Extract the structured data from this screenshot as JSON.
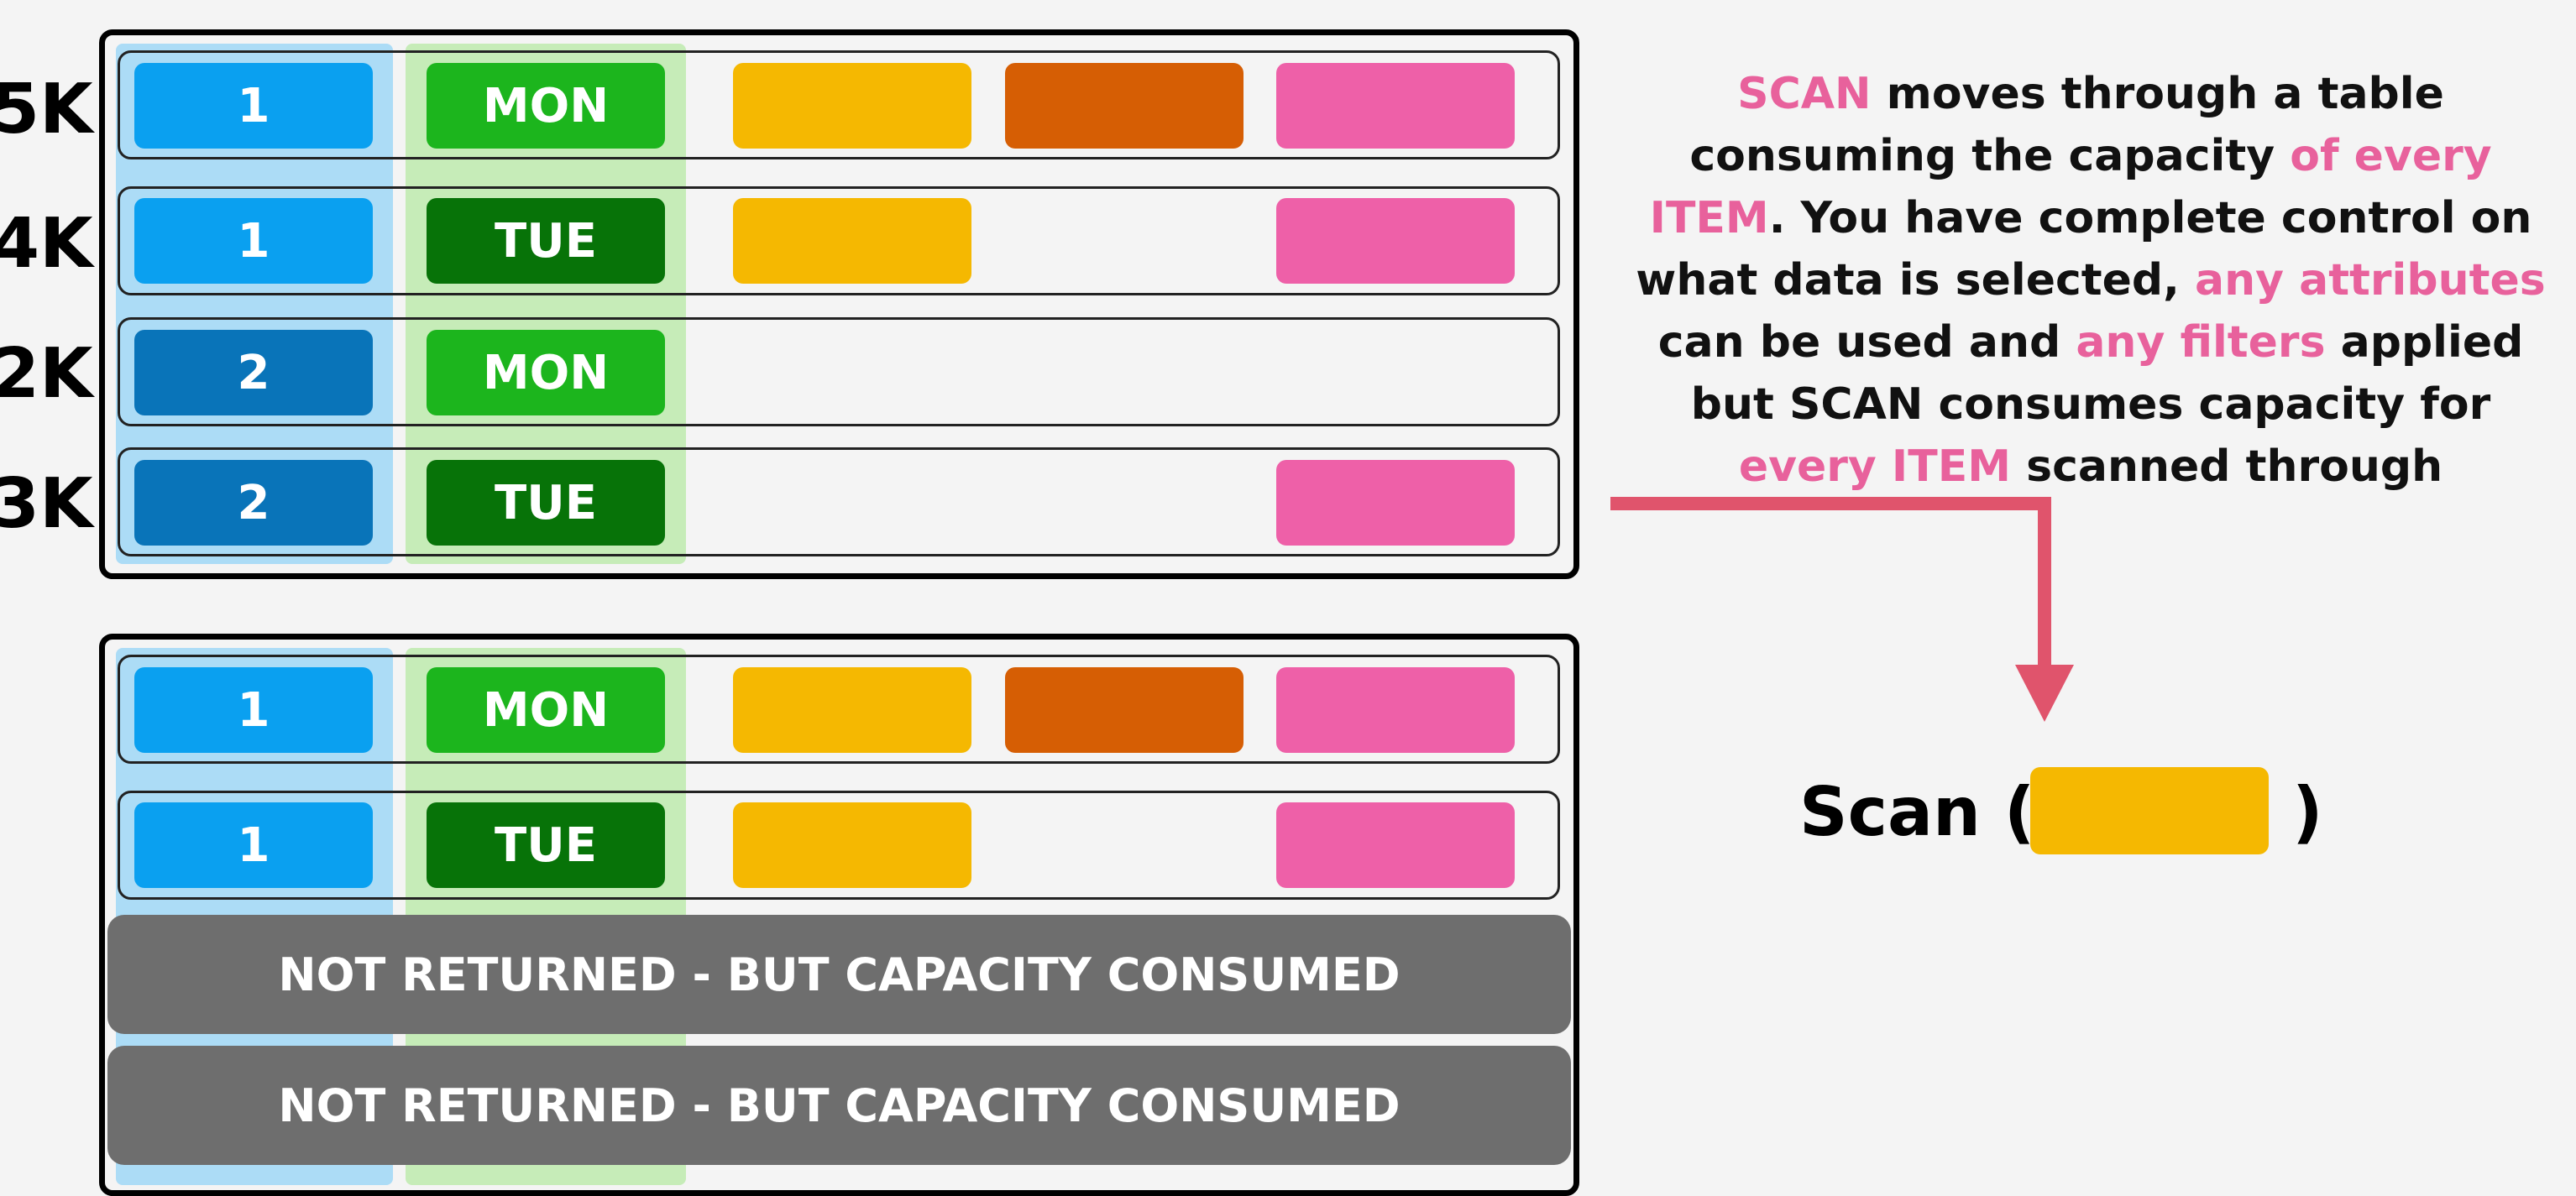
{
  "colors": {
    "background": "#f4f4f4",
    "pk_band": "#acdcf6",
    "sk_band": "#c6ecb8",
    "pk_light": "#0aa0f0",
    "pk_dark": "#0974b9",
    "sk_light": "#1cb51d",
    "sk_dark": "#077308",
    "attr_yellow": "#f5b801",
    "attr_orange": "#d65e04",
    "attr_pink": "#ee60a8",
    "not_returned_bg": "#6e6e6e",
    "arrow": "#e0546c",
    "highlight_text": "#e8619c"
  },
  "top_table": {
    "rows": [
      {
        "size": "5K",
        "pk": "1",
        "sk": "MON"
      },
      {
        "size": "4K",
        "pk": "1",
        "sk": "TUE"
      },
      {
        "size": "2K",
        "pk": "2",
        "sk": "MON"
      },
      {
        "size": "3K",
        "pk": "2",
        "sk": "TUE"
      }
    ]
  },
  "bottom_table": {
    "rows": [
      {
        "pk": "1",
        "sk": "MON"
      },
      {
        "pk": "1",
        "sk": "TUE"
      }
    ],
    "not_returned": [
      "NOT RETURNED - BUT CAPACITY CONSUMED",
      "NOT RETURNED - BUT CAPACITY CONSUMED"
    ]
  },
  "description": {
    "s1": "SCAN",
    "s2": " moves through a table consuming the capacity ",
    "s3": "of every ITEM",
    "s4": ". You have complete control on what data is selected, ",
    "s5": "any attributes",
    "s6": " can be used and ",
    "s7": "any filters",
    "s8": " applied but SCAN consumes capacity for ",
    "s9": "every ITEM",
    "s10": " scanned through"
  },
  "scan": {
    "open": "Scan (",
    "close": ")"
  }
}
